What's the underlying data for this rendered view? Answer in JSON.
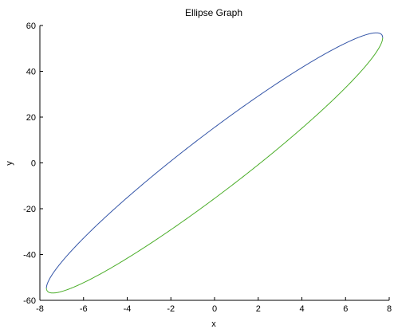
{
  "chart_data": {
    "type": "line",
    "title": "Ellipse Graph",
    "xlabel": "x",
    "ylabel": "y",
    "xlim": [
      -8,
      8
    ],
    "ylim": [
      -60,
      60
    ],
    "xticks": [
      -8,
      -6,
      -4,
      -2,
      0,
      2,
      4,
      6,
      8
    ],
    "yticks": [
      -60,
      -40,
      -20,
      0,
      20,
      40,
      60
    ],
    "grid": false,
    "box": "left-bottom",
    "ellipse": {
      "a": 7.7,
      "b": 56.8,
      "rho": 0.962
    },
    "series": [
      {
        "part": "upper",
        "color": "#3556a8"
      },
      {
        "part": "lower",
        "color": "#4cae2a"
      }
    ]
  }
}
